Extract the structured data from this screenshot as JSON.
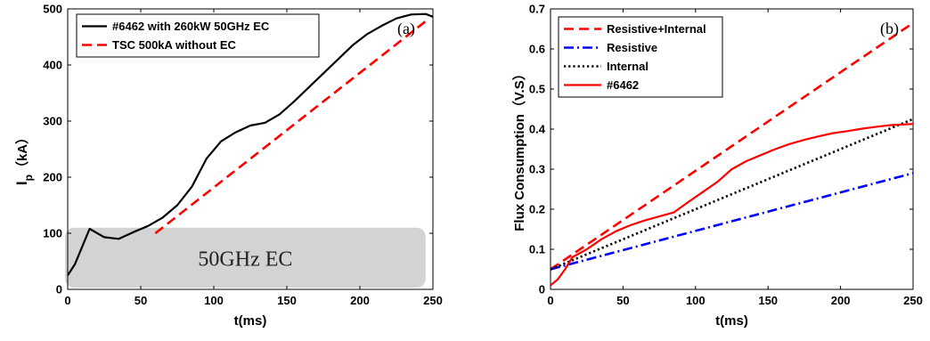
{
  "chart_data": [
    {
      "type": "line",
      "panel_label": "(a)",
      "xlabel": "t(ms)",
      "ylabel_main": "I",
      "ylabel_sub": "p",
      "ylabel_unit": "（kA）",
      "xlim": [
        0,
        250
      ],
      "ylim": [
        0,
        500
      ],
      "xticks": [
        0,
        50,
        100,
        150,
        200,
        250
      ],
      "yticks": [
        0,
        100,
        200,
        300,
        400,
        500
      ],
      "grid": false,
      "legend_position": "top-left",
      "shaded_region": {
        "label": "50GHz EC",
        "x": [
          0,
          245
        ],
        "y": [
          0,
          110
        ],
        "color": "#d3d3d3"
      },
      "series": [
        {
          "name": "#6462 with 260kW 50GHz EC",
          "color": "#000000",
          "style": "solid",
          "x": [
            0,
            5,
            15,
            25,
            35,
            45,
            55,
            65,
            75,
            85,
            95,
            105,
            115,
            125,
            135,
            145,
            155,
            165,
            175,
            185,
            195,
            205,
            215,
            225,
            235,
            245,
            250
          ],
          "y": [
            25,
            45,
            108,
            93,
            90,
            102,
            113,
            128,
            150,
            183,
            233,
            264,
            280,
            292,
            297,
            312,
            335,
            360,
            385,
            410,
            435,
            455,
            470,
            483,
            490,
            491,
            486
          ]
        },
        {
          "name": "TSC 500kA without EC",
          "color": "#ff0000",
          "style": "dashed",
          "x": [
            60,
            245
          ],
          "y": [
            100,
            478
          ]
        }
      ]
    },
    {
      "type": "line",
      "panel_label": "(b)",
      "xlabel": "t(ms)",
      "ylabel": "Flux Consumption（V.S）",
      "xlim": [
        0,
        250
      ],
      "ylim": [
        0,
        0.7
      ],
      "xticks": [
        0,
        50,
        100,
        150,
        200,
        250
      ],
      "yticks": [
        0,
        0.1,
        0.2,
        0.3,
        0.4,
        0.5,
        0.6,
        0.7
      ],
      "grid": false,
      "legend_position": "top-left",
      "series": [
        {
          "name": "Resistive+Internal",
          "color": "#ff0000",
          "style": "dashed",
          "x": [
            0,
            250
          ],
          "y": [
            0.05,
            0.665
          ]
        },
        {
          "name": "Resistive",
          "color": "#0000ff",
          "style": "dashdot",
          "x": [
            0,
            250
          ],
          "y": [
            0.05,
            0.29
          ]
        },
        {
          "name": "Internal",
          "color": "#000000",
          "style": "dotted",
          "x": [
            0,
            250
          ],
          "y": [
            0.05,
            0.425
          ]
        },
        {
          "name": "#6462",
          "color": "#ff0000",
          "style": "solid",
          "x": [
            0,
            5,
            10,
            15,
            25,
            35,
            45,
            55,
            65,
            75,
            85,
            95,
            105,
            115,
            125,
            135,
            145,
            155,
            165,
            175,
            185,
            195,
            205,
            215,
            225,
            235,
            245,
            250
          ],
          "y": [
            0.01,
            0.025,
            0.05,
            0.08,
            0.1,
            0.125,
            0.145,
            0.16,
            0.172,
            0.182,
            0.192,
            0.218,
            0.243,
            0.268,
            0.3,
            0.32,
            0.335,
            0.35,
            0.363,
            0.373,
            0.382,
            0.39,
            0.395,
            0.401,
            0.406,
            0.41,
            0.412,
            0.413
          ]
        }
      ]
    }
  ]
}
